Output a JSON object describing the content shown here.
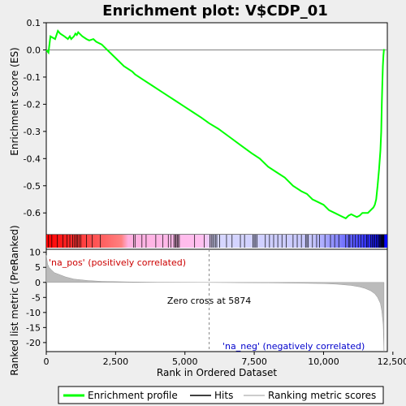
{
  "chart_data": {
    "type": "line",
    "title": "Enrichment plot: V$CDP_01",
    "top_panel": {
      "ylabel": "Enrichment score (ES)",
      "ylim": [
        -0.68,
        0.1
      ],
      "yticks": [
        0.1,
        0.0,
        -0.1,
        -0.2,
        -0.3,
        -0.4,
        -0.5,
        -0.6
      ],
      "ytick_labels": [
        "0.1",
        "0.0",
        "-0.1",
        "-0.2",
        "-0.3",
        "-0.4",
        "-0.5",
        "-0.6"
      ],
      "series": [
        {
          "name": "Enrichment profile",
          "color": "#00ff00",
          "x": [
            0,
            80,
            150,
            320,
            420,
            500,
            650,
            780,
            850,
            900,
            1000,
            1050,
            1100,
            1150,
            1200,
            1300,
            1450,
            1550,
            1700,
            1800,
            2000,
            2200,
            2500,
            2800,
            3100,
            3200,
            3500,
            3800,
            4100,
            4400,
            4700,
            5000,
            5300,
            5600,
            5874,
            6200,
            6600,
            7000,
            7400,
            7700,
            8000,
            8300,
            8600,
            8900,
            9200,
            9400,
            9600,
            9800,
            10000,
            10200,
            10400,
            10600,
            10800,
            10900,
            11000,
            11100,
            11200,
            11300,
            11400,
            11500,
            11600,
            11700,
            11800,
            11850,
            11900,
            11950,
            12000,
            12050,
            12080,
            12100,
            12120,
            12140,
            12160,
            12180
          ],
          "y": [
            0.0,
            -0.01,
            0.05,
            0.04,
            0.07,
            0.06,
            0.05,
            0.04,
            0.05,
            0.04,
            0.05,
            0.06,
            0.055,
            0.065,
            0.06,
            0.05,
            0.04,
            0.035,
            0.04,
            0.03,
            0.02,
            0.0,
            -0.03,
            -0.06,
            -0.08,
            -0.09,
            -0.11,
            -0.13,
            -0.15,
            -0.17,
            -0.19,
            -0.21,
            -0.23,
            -0.25,
            -0.27,
            -0.29,
            -0.32,
            -0.35,
            -0.38,
            -0.4,
            -0.43,
            -0.45,
            -0.47,
            -0.5,
            -0.52,
            -0.53,
            -0.55,
            -0.56,
            -0.57,
            -0.59,
            -0.6,
            -0.61,
            -0.62,
            -0.61,
            -0.605,
            -0.61,
            -0.615,
            -0.61,
            -0.6,
            -0.6,
            -0.6,
            -0.59,
            -0.58,
            -0.57,
            -0.55,
            -0.5,
            -0.44,
            -0.37,
            -0.3,
            -0.2,
            -0.12,
            -0.06,
            -0.02,
            0.003
          ]
        }
      ]
    },
    "hits_panel": {
      "name": "Hits",
      "hit_positions": [
        80,
        200,
        400,
        600,
        750,
        850,
        950,
        1020,
        1080,
        1120,
        1180,
        1250,
        1450,
        1650,
        1950,
        3150,
        3200,
        3450,
        3600,
        3950,
        4200,
        4400,
        4500,
        4600,
        4650,
        4680,
        4720,
        4750,
        4800,
        5350,
        5700,
        5900,
        5950,
        6000,
        6050,
        6100,
        6150,
        6250,
        6500,
        6700,
        7000,
        7150,
        7450,
        7500,
        7550,
        7600,
        7900,
        8050,
        8200,
        8350,
        8500,
        8650,
        8900,
        9050,
        9200,
        9350,
        9400,
        9450,
        9600,
        9750,
        9850,
        10050,
        10250,
        10400,
        10550,
        10800,
        10900,
        10950,
        11050,
        11150,
        11250,
        11350,
        11450,
        11550,
        11600,
        11700,
        11750,
        11800,
        11850,
        11900,
        11950,
        12000,
        12020,
        12050,
        12080,
        12100,
        12120,
        12140,
        12160,
        12180
      ],
      "bar_gradient": "red to pink to white to lavender to blue"
    },
    "metric_panel": {
      "ylabel": "Ranked list metric (PreRanked)",
      "xlabel": "Rank in Ordered Dataset",
      "ylim": [
        -23,
        11
      ],
      "yticks": [
        10,
        5,
        0,
        -5,
        -10,
        -15,
        -20
      ],
      "ytick_labels": [
        "10",
        "5",
        "0",
        "-5",
        "-10",
        "-15",
        "-20"
      ],
      "x": [
        0,
        50,
        100,
        200,
        300,
        500,
        700,
        1000,
        1500,
        2000,
        3000,
        4000,
        5000,
        5874,
        7000,
        8000,
        9000,
        10000,
        10500,
        11000,
        11300,
        11500,
        11700,
        11850,
        11950,
        12050,
        12100,
        12150,
        12180
      ],
      "values": [
        9,
        6,
        5,
        4,
        3.2,
        2.5,
        1.8,
        1.1,
        0.6,
        0.35,
        0.15,
        0.05,
        0.02,
        0,
        -0.08,
        -0.15,
        -0.25,
        -0.4,
        -0.6,
        -1.0,
        -1.5,
        -2.0,
        -2.8,
        -3.8,
        -5.0,
        -7.0,
        -9.5,
        -14,
        -23
      ],
      "zero_cross_label": "Zero cross at 5874",
      "zero_cross": 5874,
      "pos_label": "'na_pos' (positively correlated)",
      "neg_label": "'na_neg' (negatively correlated)"
    },
    "xlim": [
      0,
      12300
    ],
    "xticks": [
      0,
      2500,
      5000,
      7500,
      10000,
      12500
    ],
    "xtick_labels": [
      "0",
      "2,500",
      "5,000",
      "7,500",
      "10,000",
      "12,500"
    ],
    "legend": {
      "placement": "bottom",
      "entries": [
        {
          "label": "Enrichment profile",
          "color": "#00ff00"
        },
        {
          "label": "Hits",
          "color": "#000000"
        },
        {
          "label": "Ranking metric scores",
          "color": "#bbbbbb"
        }
      ]
    }
  }
}
